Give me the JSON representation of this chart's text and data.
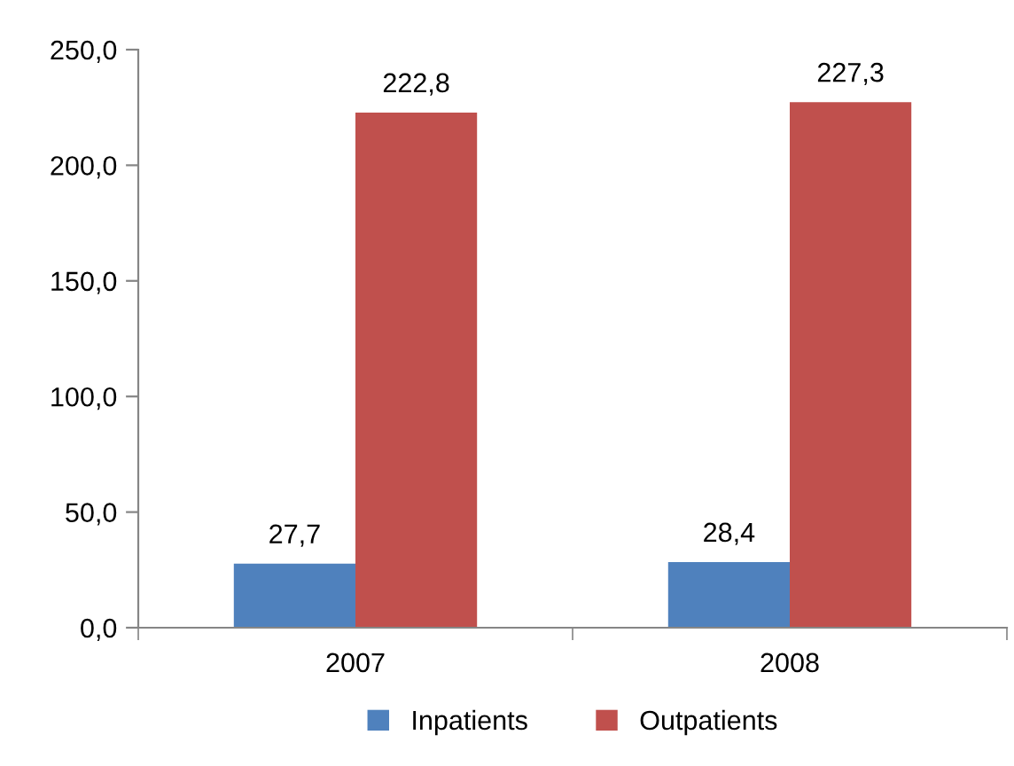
{
  "chart_data": {
    "type": "bar",
    "categories": [
      "2007",
      "2008"
    ],
    "series": [
      {
        "name": "Inpatients",
        "color": "#4f81bd",
        "values": [
          27.7,
          28.4
        ],
        "value_labels": [
          "27,7",
          "28,4"
        ]
      },
      {
        "name": "Outpatients",
        "color": "#c0504d",
        "values": [
          222.8,
          227.3
        ],
        "value_labels": [
          "222,8",
          "227,3"
        ]
      }
    ],
    "ylim": [
      0,
      250
    ],
    "yticks": [
      {
        "value": 0,
        "label": "0,0"
      },
      {
        "value": 50,
        "label": "50,0"
      },
      {
        "value": 100,
        "label": "100,0"
      },
      {
        "value": 150,
        "label": "150,0"
      },
      {
        "value": 200,
        "label": "200,0"
      },
      {
        "value": 250,
        "label": "250,0"
      }
    ],
    "grid": false,
    "legend": "bottom"
  }
}
